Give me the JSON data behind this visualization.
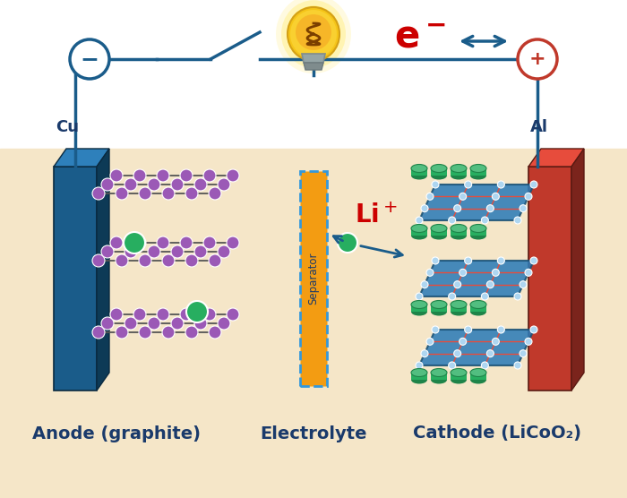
{
  "background_beige": "#f5e6c8",
  "background_white": "#ffffff",
  "anode_label": "Anode (graphite)",
  "electrolyte_label": "Electrolyte",
  "cathode_label": "Cathode (LiCoO₂)",
  "cu_label": "Cu",
  "al_label": "Al",
  "separator_label": "Separator",
  "anode_color_main": "#1a5c8a",
  "anode_color_top": "#2e80bb",
  "anode_color_side": "#0d3a56",
  "cathode_color_main": "#c0392b",
  "cathode_color_top": "#e74c3c",
  "cathode_color_side": "#7b241c",
  "separator_color": "#f39c12",
  "separator_border": "#3498db",
  "wire_color": "#1a5c8a",
  "label_color": "#1a3a6b",
  "electron_color": "#cc0000",
  "li_ion_color": "#cc0000",
  "graphite_node_color": "#9b59b6",
  "li_node_color": "#27ae60",
  "cathode_layer_color": "#2e86c1",
  "cathode_particle_color": "#27ae60",
  "bond_color": "#555555",
  "fig_width": 7.0,
  "fig_height": 5.56
}
